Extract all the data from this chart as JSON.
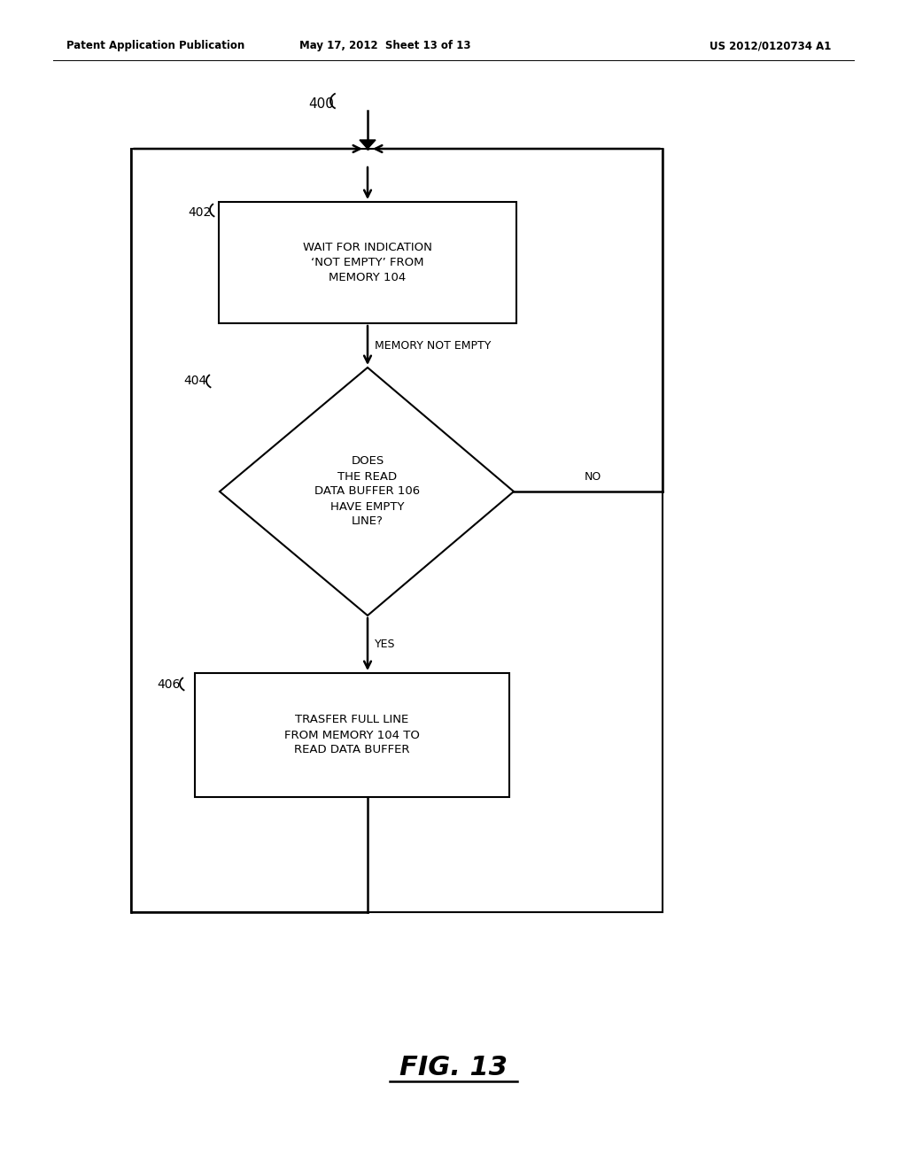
{
  "bg_color": "#ffffff",
  "header_left": "Patent Application Publication",
  "header_mid": "May 17, 2012  Sheet 13 of 13",
  "header_right": "US 2012/0120734 A1",
  "fig_label": "FIG. 13",
  "fig_number": "400",
  "node_402_label": "402",
  "node_404_label": "404",
  "node_406_label": "406",
  "box1_text": "WAIT FOR INDICATION\n‘NOT EMPTY’ FROM\nMEMORY 104",
  "diamond_text": "DOES\nTHE READ\nDATA BUFFER 106\nHAVE EMPTY\nLINE?",
  "box2_text": "TRASFER FULL LINE\nFROM MEMORY 104 TO\nREAD DATA BUFFER",
  "label_memory_not_empty": "MEMORY NOT EMPTY",
  "label_yes": "YES",
  "label_no": "NO",
  "line_color": "#000000",
  "text_color": "#000000",
  "header_fontsize": 8.5,
  "body_fontsize": 9.5,
  "label_fontsize": 9,
  "fig_label_fontsize": 22
}
